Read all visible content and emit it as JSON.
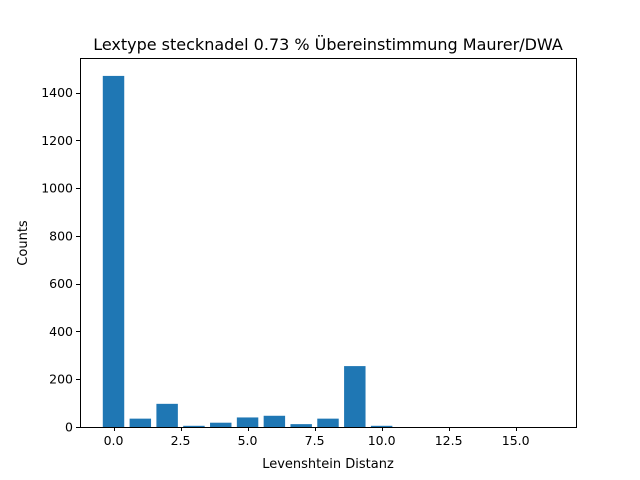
{
  "chart_data": {
    "type": "bar",
    "title": "Lextype stecknadel  0.73 % Übereinstimmung Maurer/DWA",
    "xlabel": "Levenshtein Distanz",
    "ylabel": "Counts",
    "x": [
      0,
      1,
      2,
      3,
      4,
      5,
      6,
      7,
      8,
      9,
      10
    ],
    "values": [
      1470,
      35,
      97,
      5,
      18,
      40,
      47,
      12,
      35,
      255,
      5
    ],
    "bar_width": 0.8,
    "xlim": [
      -1.25,
      17.25
    ],
    "ylim": [
      0,
      1545
    ],
    "xticks": [
      0,
      2.5,
      5,
      7.5,
      10,
      12.5,
      15
    ],
    "xtick_labels": [
      "0.0",
      "2.5",
      "5.0",
      "7.5",
      "10.0",
      "12.5",
      "15.0"
    ],
    "yticks": [
      0,
      200,
      400,
      600,
      800,
      1000,
      1200,
      1400
    ],
    "ytick_labels": [
      "0",
      "200",
      "400",
      "600",
      "800",
      "1000",
      "1200",
      "1400"
    ],
    "color": "#1f77b4",
    "grid": false,
    "legend": "none"
  }
}
